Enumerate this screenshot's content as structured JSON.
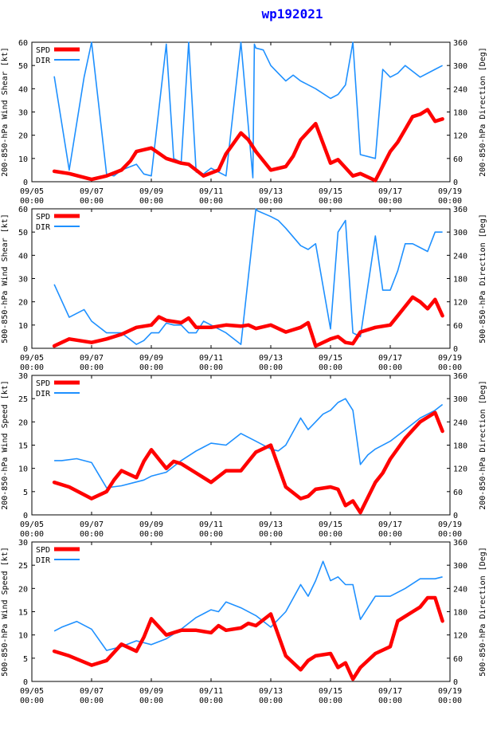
{
  "title": "wp192021",
  "colors": {
    "spd": "#ff0000",
    "dir": "#1e90ff",
    "axis": "#000000",
    "title": "#0000ff"
  },
  "legend": {
    "spd": "SPD",
    "dir": "DIR"
  },
  "x_ticks": [
    {
      "date": "09/05",
      "time": "00:00"
    },
    {
      "date": "09/07",
      "time": "00:00"
    },
    {
      "date": "09/09",
      "time": "00:00"
    },
    {
      "date": "09/11",
      "time": "00:00"
    },
    {
      "date": "09/13",
      "time": "00:00"
    },
    {
      "date": "09/15",
      "time": "00:00"
    },
    {
      "date": "09/17",
      "time": "00:00"
    },
    {
      "date": "09/19",
      "time": "00:00"
    }
  ],
  "chart_data": [
    {
      "type": "line",
      "ylabel": "200-850-hPa Wind Shear [kt]",
      "y2label": "200-850-hPa Direction [Deg]",
      "xlim": [
        0,
        14
      ],
      "ylim": [
        0,
        60
      ],
      "y2lim": [
        0,
        360
      ],
      "yticks": [
        "0",
        "10",
        "20",
        "30",
        "40",
        "50",
        "60"
      ],
      "y2ticks": [
        "0",
        "60",
        "120",
        "180",
        "240",
        "300",
        "360"
      ],
      "series": [
        {
          "name": "SPD",
          "x": [
            0.75,
            1.25,
            2.0,
            2.5,
            3.0,
            3.3,
            3.5,
            4.0,
            4.5,
            5.0,
            5.25,
            5.75,
            6.25,
            6.5,
            7.0,
            7.25,
            7.5,
            8.0,
            8.5,
            8.75,
            9.0,
            9.5,
            10.0,
            10.25,
            10.5,
            10.75,
            11.0,
            11.5,
            12.0,
            12.25,
            12.75,
            13.0,
            13.25,
            13.5,
            13.75
          ],
          "values": [
            4.5,
            3.5,
            1.0,
            2.5,
            5.0,
            9.0,
            13.0,
            14.5,
            10.0,
            8.0,
            7.5,
            2.5,
            5.0,
            12.0,
            21.0,
            18.0,
            13.0,
            5.0,
            6.5,
            11.0,
            18.0,
            25.0,
            8.0,
            9.5,
            6.0,
            2.5,
            3.5,
            0.5,
            13.0,
            17.0,
            28.0,
            29.0,
            31.0,
            26.0,
            27.0
          ]
        },
        {
          "name": "DIR",
          "x": [
            0.75,
            1.25,
            1.75,
            2.0,
            2.5,
            2.75,
            3.0,
            3.5,
            3.75,
            4.0,
            4.5,
            4.75,
            5.0,
            5.25,
            5.5,
            5.75,
            6.0,
            6.5,
            7.0,
            7.4,
            7.45,
            7.5,
            7.75,
            8.0,
            8.25,
            8.5,
            8.75,
            9.0,
            9.5,
            10.0,
            10.25,
            10.5,
            10.75,
            11.0,
            11.5,
            11.75,
            12.0,
            12.25,
            12.5,
            13.0,
            13.5,
            13.75
          ],
          "values": [
            272,
            30,
            270,
            360,
            20,
            15,
            30,
            45,
            20,
            15,
            355,
            60,
            50,
            360,
            25,
            20,
            35,
            15,
            360,
            10,
            355,
            345,
            340,
            300,
            280,
            260,
            275,
            260,
            240,
            215,
            225,
            250,
            370,
            70,
            60,
            290,
            270,
            280,
            300,
            270,
            290,
            300
          ]
        }
      ]
    },
    {
      "type": "line",
      "ylabel": "500-850-hPa Wind Shear [kt]",
      "y2label": "500-850-hPa Direction [Deg]",
      "xlim": [
        0,
        14
      ],
      "ylim": [
        0,
        60
      ],
      "y2lim": [
        0,
        360
      ],
      "yticks": [
        "0",
        "10",
        "20",
        "30",
        "40",
        "50",
        "60"
      ],
      "y2ticks": [
        "0",
        "60",
        "120",
        "180",
        "240",
        "300",
        "360"
      ],
      "series": [
        {
          "name": "SPD",
          "x": [
            0.75,
            1.25,
            2.0,
            2.5,
            3.0,
            3.5,
            4.0,
            4.25,
            4.5,
            5.0,
            5.25,
            5.5,
            6.0,
            6.5,
            7.0,
            7.25,
            7.5,
            8.0,
            8.5,
            9.0,
            9.25,
            9.5,
            10.0,
            10.25,
            10.5,
            10.75,
            11.0,
            11.5,
            12.0,
            12.25,
            12.75,
            13.0,
            13.25,
            13.5,
            13.75
          ],
          "values": [
            1.0,
            4.0,
            2.5,
            4.0,
            6.0,
            9.0,
            10.0,
            13.5,
            12.0,
            11.0,
            13.0,
            9.0,
            9.0,
            10.0,
            9.5,
            10.0,
            8.5,
            10.0,
            7.0,
            9.0,
            11.0,
            1.0,
            4.0,
            5.0,
            2.5,
            2.0,
            7.0,
            9.0,
            10.0,
            14.0,
            22.0,
            20.0,
            17.0,
            21.0,
            14.0
          ]
        },
        {
          "name": "DIR",
          "x": [
            0.75,
            1.25,
            1.75,
            2.0,
            2.5,
            3.0,
            3.5,
            3.75,
            4.0,
            4.25,
            4.5,
            4.75,
            5.0,
            5.25,
            5.5,
            5.75,
            6.0,
            6.5,
            7.0,
            7.5,
            7.55,
            8.0,
            8.25,
            8.5,
            9.0,
            9.25,
            9.5,
            10.0,
            10.25,
            10.5,
            10.75,
            11.0,
            11.5,
            11.75,
            12.0,
            12.25,
            12.5,
            12.75,
            13.0,
            13.25,
            13.5,
            13.75
          ],
          "values": [
            165,
            80,
            100,
            70,
            40,
            40,
            10,
            20,
            40,
            40,
            65,
            60,
            60,
            40,
            40,
            70,
            60,
            40,
            10,
            360,
            355,
            340,
            330,
            310,
            265,
            255,
            270,
            50,
            300,
            330,
            40,
            30,
            290,
            150,
            150,
            200,
            270,
            270,
            260,
            250,
            300,
            300
          ]
        }
      ]
    },
    {
      "type": "line",
      "ylabel": "200-850-hPa Wind Speed [kt]",
      "y2label": "200-850-hPa Direction [Deg]",
      "xlim": [
        0,
        14
      ],
      "ylim": [
        0,
        30
      ],
      "y2lim": [
        0,
        360
      ],
      "yticks": [
        "0",
        "5",
        "10",
        "15",
        "20",
        "25",
        "30"
      ],
      "y2ticks": [
        "0",
        "60",
        "120",
        "180",
        "240",
        "300",
        "360"
      ],
      "series": [
        {
          "name": "SPD",
          "x": [
            0.75,
            1.25,
            2.0,
            2.5,
            2.75,
            3.0,
            3.5,
            3.75,
            4.0,
            4.5,
            4.75,
            5.0,
            5.5,
            6.0,
            6.5,
            7.0,
            7.25,
            7.5,
            8.0,
            8.5,
            9.0,
            9.25,
            9.5,
            10.0,
            10.25,
            10.5,
            10.75,
            11.0,
            11.5,
            11.75,
            12.0,
            12.5,
            13.0,
            13.25,
            13.5,
            13.75
          ],
          "values": [
            7.0,
            6.0,
            3.5,
            5.0,
            7.5,
            9.5,
            8.0,
            11.5,
            14.0,
            10.0,
            11.5,
            11.0,
            9.0,
            7.0,
            9.5,
            9.5,
            11.5,
            13.5,
            15.0,
            6.0,
            3.5,
            4.0,
            5.5,
            6.0,
            5.5,
            2.0,
            3.0,
            0.5,
            7.0,
            9.0,
            12.0,
            16.5,
            20.0,
            21.0,
            22.0,
            18.0
          ]
        },
        {
          "name": "DIR",
          "x": [
            0.75,
            1.0,
            1.5,
            2.0,
            2.5,
            3.0,
            3.5,
            3.75,
            4.0,
            4.5,
            5.0,
            5.5,
            6.0,
            6.5,
            7.0,
            7.5,
            8.0,
            8.25,
            8.5,
            9.0,
            9.25,
            9.5,
            9.75,
            10.0,
            10.25,
            10.5,
            10.75,
            11.0,
            11.25,
            11.5,
            12.0,
            12.5,
            13.0,
            13.5,
            13.75
          ],
          "values": [
            140,
            140,
            145,
            135,
            70,
            75,
            85,
            90,
            100,
            110,
            140,
            165,
            185,
            180,
            210,
            190,
            170,
            165,
            180,
            250,
            220,
            240,
            260,
            270,
            290,
            300,
            270,
            130,
            155,
            170,
            190,
            220,
            250,
            270,
            285
          ]
        }
      ]
    },
    {
      "type": "line",
      "ylabel": "500-850-hPa Wind Speed [kt]",
      "y2label": "500-850-hPa Direction [Deg]",
      "xlim": [
        0,
        14
      ],
      "ylim": [
        0,
        30
      ],
      "y2lim": [
        0,
        360
      ],
      "yticks": [
        "0",
        "5",
        "10",
        "15",
        "20",
        "25",
        "30"
      ],
      "y2ticks": [
        "0",
        "60",
        "120",
        "180",
        "240",
        "300",
        "360"
      ],
      "series": [
        {
          "name": "SPD",
          "x": [
            0.75,
            1.25,
            2.0,
            2.5,
            3.0,
            3.5,
            3.75,
            4.0,
            4.5,
            5.0,
            5.5,
            6.0,
            6.25,
            6.5,
            7.0,
            7.25,
            7.5,
            8.0,
            8.5,
            9.0,
            9.25,
            9.5,
            10.0,
            10.25,
            10.5,
            10.75,
            11.0,
            11.5,
            12.0,
            12.25,
            12.75,
            13.0,
            13.25,
            13.5,
            13.75
          ],
          "values": [
            6.5,
            5.5,
            3.5,
            4.5,
            8.0,
            6.5,
            9.5,
            13.5,
            10.0,
            11.0,
            11.0,
            10.5,
            12.0,
            11.0,
            11.5,
            12.5,
            12.0,
            14.5,
            5.5,
            2.5,
            4.5,
            5.5,
            6.0,
            3.0,
            4.0,
            0.5,
            3.0,
            6.0,
            7.5,
            13.0,
            15.0,
            16.0,
            18.0,
            18.0,
            13.0
          ]
        },
        {
          "name": "DIR",
          "x": [
            0.75,
            1.0,
            1.5,
            2.0,
            2.5,
            3.0,
            3.5,
            3.75,
            4.0,
            4.5,
            5.0,
            5.5,
            6.0,
            6.25,
            6.5,
            7.0,
            7.5,
            8.0,
            8.5,
            9.0,
            9.25,
            9.5,
            9.75,
            10.0,
            10.25,
            10.5,
            10.75,
            11.0,
            11.25,
            11.5,
            12.0,
            12.5,
            13.0,
            13.5,
            13.75
          ],
          "values": [
            130,
            140,
            155,
            135,
            80,
            90,
            105,
            100,
            95,
            110,
            135,
            165,
            185,
            180,
            205,
            190,
            170,
            140,
            180,
            250,
            220,
            260,
            310,
            260,
            270,
            250,
            250,
            160,
            190,
            220,
            220,
            240,
            265,
            265,
            270
          ]
        }
      ]
    }
  ]
}
